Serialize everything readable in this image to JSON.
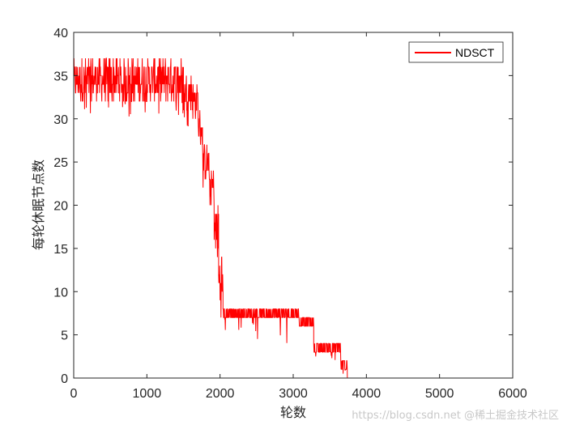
{
  "chart_data": {
    "type": "line",
    "title": "",
    "xlabel": "轮数",
    "ylabel": "每轮休眠节点数",
    "xlim": [
      0,
      6000
    ],
    "ylim": [
      0,
      40
    ],
    "x_ticks": [
      0,
      1000,
      2000,
      3000,
      4000,
      5000,
      6000
    ],
    "y_ticks": [
      0,
      5,
      10,
      15,
      20,
      25,
      30,
      35,
      40
    ],
    "grid": false,
    "legend_position": "top-right",
    "series": [
      {
        "name": "NDSCT",
        "color": "#ff0000",
        "band_segments": [
          {
            "x_start": 0,
            "x_end": 1500,
            "y_high": 37,
            "y_low": 32,
            "spike_min": 30
          },
          {
            "x_start": 1500,
            "x_end": 1620,
            "y_high": 35,
            "y_low": 31,
            "spike_min": 29
          },
          {
            "x_start": 1620,
            "x_end": 1700,
            "y_high": 34,
            "y_low": 30
          },
          {
            "x_start": 1700,
            "x_end": 1760,
            "y_high": 31,
            "y_low": 27
          },
          {
            "x_start": 1760,
            "x_end": 1850,
            "y_high": 27,
            "y_low": 23,
            "spike_min": 22
          },
          {
            "x_start": 1850,
            "x_end": 1920,
            "y_high": 24,
            "y_low": 20
          },
          {
            "x_start": 1920,
            "x_end": 1980,
            "y_high": 20,
            "y_low": 14
          },
          {
            "x_start": 1980,
            "x_end": 2040,
            "y_high": 15,
            "y_low": 7
          },
          {
            "x_start": 2040,
            "x_end": 3080,
            "y_high": 8,
            "y_low": 7,
            "spike_min": 4
          },
          {
            "x_start": 3080,
            "x_end": 3280,
            "y_high": 7,
            "y_low": 6,
            "spike_min": 4
          },
          {
            "x_start": 3280,
            "x_end": 3650,
            "y_high": 4,
            "y_low": 3,
            "spike_min": 2
          },
          {
            "x_start": 3650,
            "x_end": 3740,
            "y_high": 2,
            "y_low": 1,
            "spike_min": 0
          },
          {
            "x_start": 3740,
            "x_end": 6000,
            "y_high": 0,
            "y_low": 0
          }
        ]
      }
    ]
  },
  "watermark": "https://blog.csdn.net @稀土掘金技术社区"
}
